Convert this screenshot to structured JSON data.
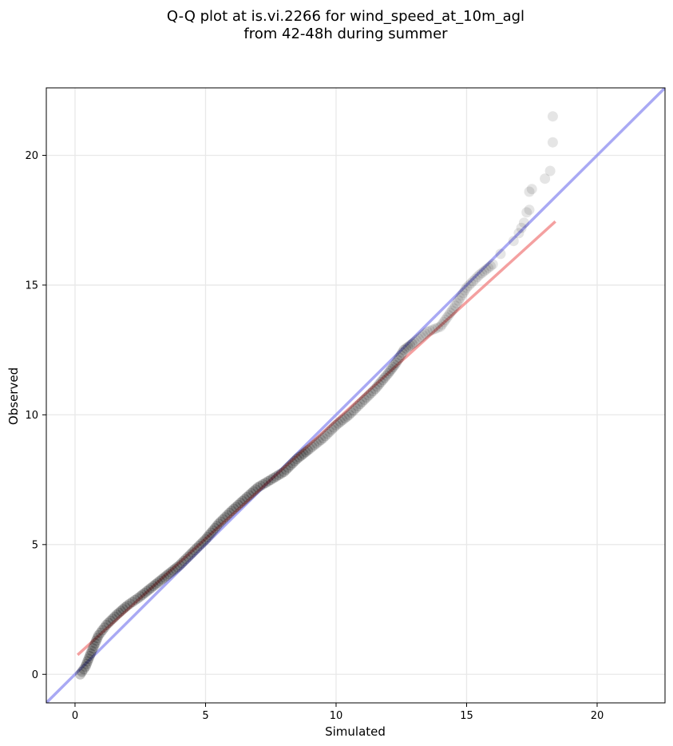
{
  "chart_data": {
    "type": "scatter",
    "title_lines": [
      "Q-Q plot at is.vi.2266 for wind_speed_at_10m_agl",
      "from 42-48h during summer"
    ],
    "xlabel": "Simulated",
    "ylabel": "Observed",
    "xlim": [
      -1.1,
      22.6
    ],
    "ylim": [
      -1.1,
      22.6
    ],
    "xticks": [
      0,
      5,
      10,
      15,
      20
    ],
    "yticks": [
      0,
      5,
      10,
      15,
      20
    ],
    "grid": true,
    "colors": {
      "points": "#000000",
      "fit_line": "#f08080",
      "identity_line": "#8c8cf0"
    },
    "quantile_anchors": [
      [
        0.2,
        0.0
      ],
      [
        0.4,
        0.3
      ],
      [
        0.6,
        0.8
      ],
      [
        0.9,
        1.5
      ],
      [
        1.2,
        1.9
      ],
      [
        1.6,
        2.3
      ],
      [
        2.0,
        2.65
      ],
      [
        2.5,
        3.0
      ],
      [
        3.0,
        3.4
      ],
      [
        3.5,
        3.8
      ],
      [
        4.0,
        4.2
      ],
      [
        4.5,
        4.7
      ],
      [
        5.0,
        5.2
      ],
      [
        5.5,
        5.8
      ],
      [
        6.0,
        6.3
      ],
      [
        6.5,
        6.75
      ],
      [
        7.0,
        7.2
      ],
      [
        7.5,
        7.5
      ],
      [
        8.0,
        7.8
      ],
      [
        8.5,
        8.3
      ],
      [
        9.0,
        8.7
      ],
      [
        9.5,
        9.1
      ],
      [
        10.0,
        9.6
      ],
      [
        10.5,
        10.0
      ],
      [
        11.0,
        10.5
      ],
      [
        11.5,
        11.0
      ],
      [
        12.0,
        11.6
      ],
      [
        12.3,
        12.0
      ],
      [
        12.6,
        12.5
      ],
      [
        13.0,
        12.8
      ],
      [
        13.5,
        13.2
      ],
      [
        14.0,
        13.4
      ],
      [
        14.5,
        14.1
      ],
      [
        15.0,
        14.9
      ],
      [
        15.5,
        15.4
      ],
      [
        16.0,
        15.8
      ]
    ],
    "tail_points": [
      [
        16.3,
        16.2
      ],
      [
        16.8,
        16.7
      ],
      [
        17.0,
        17.0
      ],
      [
        17.1,
        17.2
      ],
      [
        17.2,
        17.4
      ],
      [
        17.3,
        17.8
      ],
      [
        17.4,
        17.9
      ],
      [
        17.4,
        18.6
      ],
      [
        17.5,
        18.7
      ],
      [
        18.0,
        19.1
      ],
      [
        18.2,
        19.4
      ],
      [
        18.3,
        20.5
      ],
      [
        18.3,
        21.5
      ]
    ],
    "fit_line": {
      "x": [
        0.1,
        18.4
      ],
      "y": [
        0.75,
        17.45
      ]
    },
    "identity_line": {
      "x": [
        -1.1,
        22.6
      ],
      "y": [
        -1.1,
        22.6
      ]
    }
  }
}
